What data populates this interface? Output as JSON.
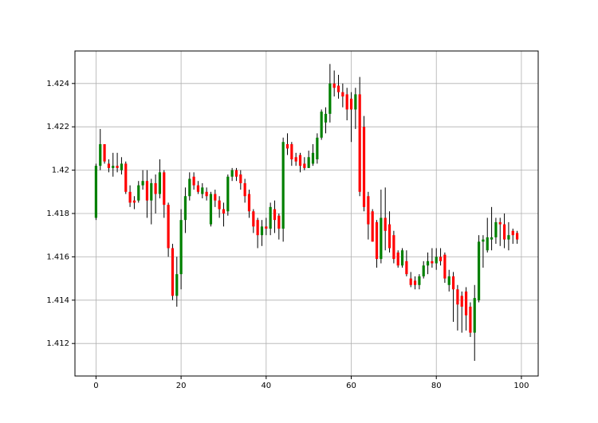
{
  "chart_data": {
    "type": "candlestick",
    "x": [
      0,
      1,
      2,
      3,
      4,
      5,
      6,
      7,
      8,
      9,
      10,
      11,
      12,
      13,
      14,
      15,
      16,
      17,
      18,
      19,
      20,
      21,
      22,
      23,
      24,
      25,
      26,
      27,
      28,
      29,
      30,
      31,
      32,
      33,
      34,
      35,
      36,
      37,
      38,
      39,
      40,
      41,
      42,
      43,
      44,
      45,
      46,
      47,
      48,
      49,
      50,
      51,
      52,
      53,
      54,
      55,
      56,
      57,
      58,
      59,
      60,
      61,
      62,
      63,
      64,
      65,
      66,
      67,
      68,
      69,
      70,
      71,
      72,
      73,
      74,
      75,
      76,
      77,
      78,
      79,
      80,
      81,
      82,
      83,
      84,
      85,
      86,
      87,
      88,
      89,
      90,
      91,
      92,
      93,
      94,
      95,
      96,
      97,
      98,
      99
    ],
    "open": [
      1.4178,
      1.4202,
      1.4212,
      1.4203,
      1.4201,
      1.4202,
      1.42,
      1.4203,
      1.419,
      1.4186,
      1.4186,
      1.4193,
      1.4195,
      1.4186,
      1.4194,
      1.4189,
      1.4199,
      1.4184,
      1.4164,
      1.4142,
      1.4152,
      1.4177,
      1.4188,
      1.4197,
      1.4193,
      1.4189,
      1.419,
      1.4175,
      1.4189,
      1.4186,
      1.4182,
      1.4181,
      1.4197,
      1.42,
      1.4198,
      1.4194,
      1.4189,
      1.4181,
      1.4177,
      1.417,
      1.4174,
      1.4173,
      1.4182,
      1.4179,
      1.4173,
      1.4212,
      1.4212,
      1.4206,
      1.4207,
      1.4203,
      1.4201,
      1.4203,
      1.4205,
      1.4215,
      1.4222,
      1.4226,
      1.424,
      1.4239,
      1.4236,
      1.4235,
      1.4233,
      1.4228,
      1.4235,
      1.422,
      1.4188,
      1.4181,
      1.4176,
      1.4159,
      1.4178,
      1.4175,
      1.417,
      1.4162,
      1.4156,
      1.4158,
      1.415,
      1.4149,
      1.4147,
      1.4151,
      1.4156,
      1.4158,
      1.4157,
      1.416,
      1.4161,
      1.4147,
      1.4151,
      1.4145,
      1.4142,
      1.4144,
      1.4137,
      1.4125,
      1.414,
      1.4167,
      1.4163,
      1.4168,
      1.4169,
      1.4176,
      1.4175,
      1.4168,
      1.4172,
      1.4171
    ],
    "high": [
      1.4203,
      1.4219,
      1.4212,
      1.4205,
      1.4208,
      1.4208,
      1.4206,
      1.4204,
      1.4193,
      1.4188,
      1.4195,
      1.42,
      1.42,
      1.4196,
      1.4198,
      1.4205,
      1.42,
      1.4185,
      1.4166,
      1.416,
      1.4182,
      1.4192,
      1.4199,
      1.4199,
      1.4195,
      1.4194,
      1.4192,
      1.419,
      1.4191,
      1.4188,
      1.4185,
      1.4198,
      1.4201,
      1.4201,
      1.42,
      1.4196,
      1.4191,
      1.4182,
      1.4178,
      1.4177,
      1.4178,
      1.4185,
      1.4186,
      1.418,
      1.4215,
      1.4217,
      1.4213,
      1.4208,
      1.4208,
      1.4206,
      1.4209,
      1.4212,
      1.4217,
      1.4228,
      1.4229,
      1.4249,
      1.4246,
      1.4244,
      1.424,
      1.4238,
      1.4236,
      1.4238,
      1.4243,
      1.4225,
      1.419,
      1.4182,
      1.4177,
      1.4191,
      1.4192,
      1.4181,
      1.4172,
      1.4163,
      1.4164,
      1.4163,
      1.4153,
      1.4151,
      1.4152,
      1.4158,
      1.4162,
      1.4164,
      1.4164,
      1.4164,
      1.4162,
      1.4154,
      1.4153,
      1.4147,
      1.4144,
      1.4146,
      1.4139,
      1.4147,
      1.417,
      1.417,
      1.4178,
      1.4183,
      1.4178,
      1.4178,
      1.418,
      1.4176,
      1.4173,
      1.4172
    ],
    "low": [
      1.4177,
      1.42,
      1.4203,
      1.4199,
      1.4197,
      1.4199,
      1.4198,
      1.4189,
      1.4183,
      1.4182,
      1.4185,
      1.4191,
      1.4178,
      1.4175,
      1.418,
      1.4187,
      1.4178,
      1.416,
      1.414,
      1.4137,
      1.4145,
      1.4171,
      1.4186,
      1.4191,
      1.4189,
      1.4187,
      1.4186,
      1.4174,
      1.4183,
      1.4178,
      1.4174,
      1.4179,
      1.4195,
      1.4195,
      1.4191,
      1.4185,
      1.4178,
      1.4171,
      1.4164,
      1.4165,
      1.417,
      1.417,
      1.4171,
      1.4168,
      1.4167,
      1.4207,
      1.4202,
      1.4202,
      1.4199,
      1.42,
      1.4201,
      1.4202,
      1.4203,
      1.4214,
      1.4217,
      1.4222,
      1.4234,
      1.4233,
      1.4229,
      1.4223,
      1.4213,
      1.4219,
      1.4188,
      1.4181,
      1.4168,
      1.4167,
      1.4155,
      1.4157,
      1.4163,
      1.4162,
      1.4157,
      1.4155,
      1.4155,
      1.4151,
      1.4146,
      1.4145,
      1.4145,
      1.415,
      1.4152,
      1.4155,
      1.4154,
      1.4156,
      1.4148,
      1.4144,
      1.413,
      1.4126,
      1.4125,
      1.4126,
      1.4123,
      1.4112,
      1.4139,
      1.4155,
      1.4162,
      1.4163,
      1.4166,
      1.4165,
      1.4164,
      1.4163,
      1.4166,
      1.4166
    ],
    "close": [
      1.4202,
      1.4212,
      1.4204,
      1.4201,
      1.4202,
      1.4201,
      1.4203,
      1.419,
      1.4185,
      1.4185,
      1.4193,
      1.4195,
      1.4186,
      1.4194,
      1.4189,
      1.4199,
      1.4184,
      1.4164,
      1.4142,
      1.4152,
      1.4177,
      1.4188,
      1.4196,
      1.4193,
      1.419,
      1.4192,
      1.4188,
      1.4189,
      1.4186,
      1.4182,
      1.418,
      1.4197,
      1.42,
      1.4197,
      1.4194,
      1.4188,
      1.4181,
      1.4174,
      1.417,
      1.4174,
      1.4173,
      1.4183,
      1.4177,
      1.4173,
      1.4213,
      1.421,
      1.4205,
      1.4204,
      1.4202,
      1.4201,
      1.4206,
      1.4208,
      1.4215,
      1.4227,
      1.4226,
      1.424,
      1.4238,
      1.4236,
      1.4234,
      1.4228,
      1.4228,
      1.4235,
      1.419,
      1.4183,
      1.4175,
      1.4167,
      1.4159,
      1.4178,
      1.4172,
      1.4164,
      1.4159,
      1.4156,
      1.4163,
      1.4152,
      1.4147,
      1.4147,
      1.4151,
      1.4156,
      1.4158,
      1.4157,
      1.416,
      1.4158,
      1.415,
      1.4151,
      1.4145,
      1.4138,
      1.4137,
      1.4133,
      1.4125,
      1.4141,
      1.4167,
      1.4168,
      1.4169,
      1.4169,
      1.4176,
      1.4175,
      1.4168,
      1.417,
      1.417,
      1.4168
    ],
    "up_color": "green",
    "down_color": "red",
    "xlim": [
      -4.95,
      103.95
    ],
    "xticks": [
      0,
      20,
      40,
      60,
      80,
      100
    ],
    "ylim": [
      1.4105,
      1.4255
    ],
    "yticks": [
      1.412,
      1.414,
      1.416,
      1.418,
      1.42,
      1.422,
      1.424
    ],
    "grid": true
  }
}
